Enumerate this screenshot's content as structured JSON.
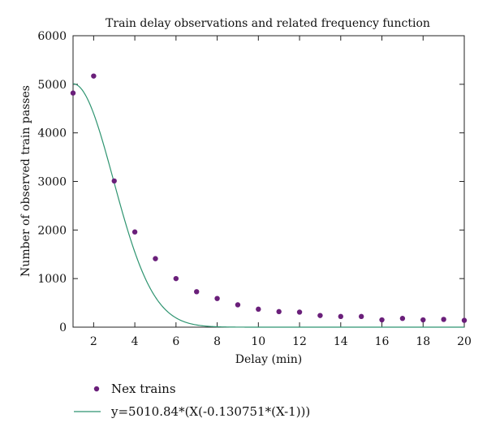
{
  "chart_data": {
    "type": "scatter",
    "title": "Train delay observations and related frequency function",
    "xlabel": "Delay (min)",
    "ylabel": "Number of observed train passes",
    "xlim": [
      1,
      20
    ],
    "ylim": [
      0,
      6000
    ],
    "xticks": [
      2,
      4,
      6,
      8,
      10,
      12,
      14,
      16,
      18,
      20
    ],
    "yticks": [
      0,
      1000,
      2000,
      3000,
      4000,
      5000,
      6000
    ],
    "grid": false,
    "legend_position": "bottom",
    "series": [
      {
        "name": "Nex trains",
        "kind": "scatter",
        "color": "#6a1f7a",
        "x": [
          1,
          2,
          3,
          4,
          5,
          6,
          7,
          8,
          9,
          10,
          11,
          12,
          13,
          14,
          15,
          16,
          17,
          18,
          19,
          20
        ],
        "y": [
          4820,
          5170,
          3010,
          1960,
          1410,
          1000,
          730,
          590,
          460,
          370,
          320,
          310,
          240,
          220,
          220,
          150,
          180,
          150,
          160,
          140
        ]
      },
      {
        "name": "y=5010.84*(X(-0.130751*(X-1)))",
        "kind": "line",
        "color": "#2e9470",
        "function": {
          "A": 5010.84,
          "b": 0.130751
        }
      }
    ]
  }
}
